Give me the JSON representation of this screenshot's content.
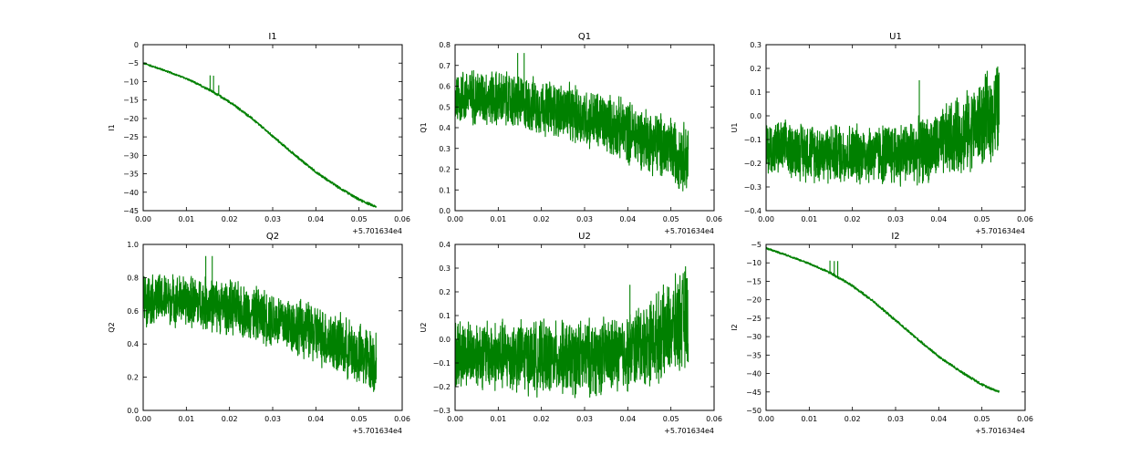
{
  "colors": {
    "line": "#008000",
    "frame": "#000000",
    "background": "#ffffff"
  },
  "chart_data": [
    {
      "type": "line",
      "title": "I1",
      "ylabel": "I1",
      "xlabel": "",
      "x_offset_label": "+5.701634e4",
      "xlim": [
        0,
        0.06
      ],
      "ylim": [
        -45,
        0
      ],
      "xticks": [
        "0.00",
        "0.01",
        "0.02",
        "0.03",
        "0.04",
        "0.05",
        "0.06"
      ],
      "yticks": [
        "0",
        "−5",
        "−10",
        "−15",
        "−20",
        "−25",
        "−30",
        "−35",
        "−40",
        "−45"
      ],
      "series": [
        {
          "x": [
            0,
            0.005,
            0.01,
            0.015,
            0.02,
            0.025,
            0.03,
            0.035,
            0.04,
            0.045,
            0.05,
            0.054
          ],
          "y": [
            -5.0,
            -7.0,
            -9.2,
            -12.0,
            -15.5,
            -19.8,
            -24.8,
            -29.8,
            -34.5,
            -38.5,
            -42.0,
            -44.0
          ],
          "band": [
            0.3,
            0.3,
            0.3,
            0.4,
            0.4,
            0.4,
            0.4,
            0.4,
            0.4,
            0.4,
            0.4,
            0.4
          ],
          "spikes": [
            {
              "x": 0.0155,
              "y": -8.3
            },
            {
              "x": 0.0163,
              "y": -8.4
            },
            {
              "x": 0.0175,
              "y": -11.0
            }
          ]
        }
      ],
      "grid": false
    },
    {
      "type": "line",
      "title": "Q1",
      "ylabel": "Q1",
      "xlabel": "",
      "x_offset_label": "+5.701634e4",
      "xlim": [
        0,
        0.06
      ],
      "ylim": [
        0.0,
        0.8
      ],
      "xticks": [
        "0.00",
        "0.01",
        "0.02",
        "0.03",
        "0.04",
        "0.05",
        "0.06"
      ],
      "yticks": [
        "0.0",
        "0.1",
        "0.2",
        "0.3",
        "0.4",
        "0.5",
        "0.6",
        "0.7",
        "0.8"
      ],
      "series": [
        {
          "x": [
            0,
            0.005,
            0.01,
            0.015,
            0.02,
            0.025,
            0.03,
            0.035,
            0.04,
            0.045,
            0.05,
            0.054
          ],
          "y": [
            0.55,
            0.55,
            0.54,
            0.52,
            0.5,
            0.48,
            0.45,
            0.42,
            0.38,
            0.34,
            0.29,
            0.26
          ],
          "band": [
            0.15,
            0.15,
            0.15,
            0.15,
            0.15,
            0.15,
            0.16,
            0.16,
            0.17,
            0.17,
            0.18,
            0.19
          ],
          "spikes": [
            {
              "x": 0.0145,
              "y": 0.76
            },
            {
              "x": 0.016,
              "y": 0.76
            }
          ]
        }
      ],
      "grid": false
    },
    {
      "type": "line",
      "title": "U1",
      "ylabel": "U1",
      "xlabel": "",
      "x_offset_label": "+5.701634e4",
      "xlim": [
        0,
        0.06
      ],
      "ylim": [
        -0.4,
        0.3
      ],
      "xticks": [
        "0.00",
        "0.01",
        "0.02",
        "0.03",
        "0.04",
        "0.05",
        "0.06"
      ],
      "yticks": [
        "−0.4",
        "−0.3",
        "−0.2",
        "−0.1",
        "0.0",
        "0.1",
        "0.2",
        "0.3"
      ],
      "series": [
        {
          "x": [
            0,
            0.005,
            0.01,
            0.015,
            0.02,
            0.025,
            0.03,
            0.035,
            0.04,
            0.042,
            0.045,
            0.05,
            0.054
          ],
          "y": [
            -0.14,
            -0.14,
            -0.15,
            -0.16,
            -0.16,
            -0.16,
            -0.16,
            -0.15,
            -0.13,
            -0.1,
            -0.08,
            -0.03,
            0.03
          ],
          "band": [
            0.13,
            0.13,
            0.14,
            0.14,
            0.14,
            0.14,
            0.15,
            0.15,
            0.16,
            0.17,
            0.18,
            0.2,
            0.23
          ],
          "spikes": [
            {
              "x": 0.0355,
              "y": 0.15
            }
          ]
        }
      ],
      "grid": false
    },
    {
      "type": "line",
      "title": "Q2",
      "ylabel": "Q2",
      "xlabel": "",
      "x_offset_label": "+5.701634e4",
      "xlim": [
        0,
        0.06
      ],
      "ylim": [
        0.0,
        1.0
      ],
      "xticks": [
        "0.00",
        "0.01",
        "0.02",
        "0.03",
        "0.04",
        "0.05",
        "0.06"
      ],
      "yticks": [
        "0.0",
        "0.2",
        "0.4",
        "0.6",
        "0.8",
        "1.0"
      ],
      "series": [
        {
          "x": [
            0,
            0.005,
            0.01,
            0.015,
            0.02,
            0.025,
            0.03,
            0.035,
            0.04,
            0.045,
            0.05,
            0.054
          ],
          "y": [
            0.67,
            0.67,
            0.66,
            0.64,
            0.62,
            0.59,
            0.55,
            0.51,
            0.46,
            0.4,
            0.33,
            0.29
          ],
          "band": [
            0.17,
            0.17,
            0.17,
            0.18,
            0.18,
            0.18,
            0.19,
            0.19,
            0.2,
            0.2,
            0.21,
            0.22
          ],
          "spikes": [
            {
              "x": 0.0145,
              "y": 0.93
            },
            {
              "x": 0.016,
              "y": 0.93
            }
          ]
        }
      ],
      "grid": false
    },
    {
      "type": "line",
      "title": "U2",
      "ylabel": "U2",
      "xlabel": "",
      "x_offset_label": "+5.701634e4",
      "xlim": [
        0,
        0.06
      ],
      "ylim": [
        -0.3,
        0.4
      ],
      "xticks": [
        "0.00",
        "0.01",
        "0.02",
        "0.03",
        "0.04",
        "0.05",
        "0.06"
      ],
      "yticks": [
        "−0.3",
        "−0.2",
        "−0.1",
        "0.0",
        "0.1",
        "0.2",
        "0.3",
        "0.4"
      ],
      "series": [
        {
          "x": [
            0,
            0.005,
            0.01,
            0.015,
            0.02,
            0.025,
            0.03,
            0.035,
            0.04,
            0.042,
            0.045,
            0.05,
            0.054
          ],
          "y": [
            -0.06,
            -0.06,
            -0.07,
            -0.07,
            -0.08,
            -0.08,
            -0.08,
            -0.07,
            -0.06,
            -0.03,
            -0.01,
            0.04,
            0.1
          ],
          "band": [
            0.16,
            0.16,
            0.17,
            0.17,
            0.17,
            0.17,
            0.18,
            0.18,
            0.18,
            0.19,
            0.2,
            0.22,
            0.25
          ],
          "spikes": [
            {
              "x": 0.0405,
              "y": 0.23
            }
          ]
        }
      ],
      "grid": false
    },
    {
      "type": "line",
      "title": "I2",
      "ylabel": "I2",
      "xlabel": "",
      "x_offset_label": "+5.701634e4",
      "xlim": [
        0,
        0.06
      ],
      "ylim": [
        -50,
        -5
      ],
      "xticks": [
        "0.00",
        "0.01",
        "0.02",
        "0.03",
        "0.04",
        "0.05",
        "0.06"
      ],
      "yticks": [
        "−5",
        "−10",
        "−15",
        "−20",
        "−25",
        "−30",
        "−35",
        "−40",
        "−45",
        "−50"
      ],
      "series": [
        {
          "x": [
            0,
            0.005,
            0.01,
            0.015,
            0.02,
            0.025,
            0.03,
            0.035,
            0.04,
            0.045,
            0.05,
            0.054
          ],
          "y": [
            -6.0,
            -8.0,
            -10.2,
            -12.8,
            -16.2,
            -20.6,
            -25.6,
            -30.6,
            -35.4,
            -39.4,
            -43.0,
            -45.0
          ],
          "band": [
            0.3,
            0.3,
            0.3,
            0.4,
            0.4,
            0.4,
            0.4,
            0.4,
            0.4,
            0.4,
            0.4,
            0.4
          ],
          "spikes": [
            {
              "x": 0.0148,
              "y": -9.4
            },
            {
              "x": 0.0158,
              "y": -9.5
            },
            {
              "x": 0.0166,
              "y": -9.5
            }
          ]
        }
      ],
      "grid": false
    }
  ]
}
